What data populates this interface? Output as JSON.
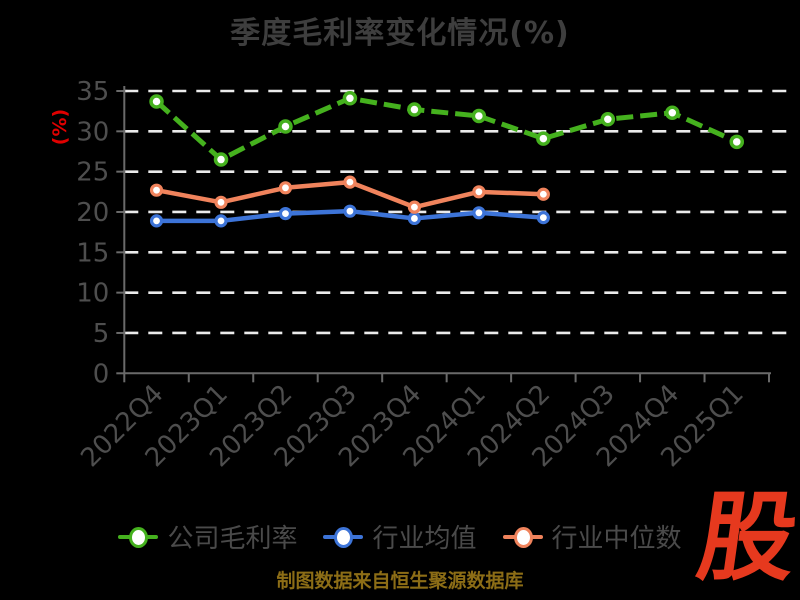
{
  "title": "季度毛利率变化情况(%)",
  "y_axis_unit": "(%)",
  "footer_text": "制图数据来自恒生聚源数据库",
  "logo_text": "股",
  "colors": {
    "background": "#000000",
    "title_text": "#3e3e3e",
    "axis_line": "#6a6a6a",
    "tick_label": "#4e4e4e",
    "gridline": "#ebebeb",
    "y_unit_label": "#e00000",
    "footer_text": "#8c6d16",
    "logo_red": "#e6391e",
    "series_company": "#45b11e",
    "series_industry_avg": "#3d74d8",
    "series_industry_median": "#f0835c"
  },
  "chart_data": {
    "type": "line",
    "title": "季度毛利率变化情况(%)",
    "xlabel": "",
    "ylabel": "(%)",
    "categories": [
      "2022Q4",
      "2023Q1",
      "2023Q2",
      "2023Q3",
      "2023Q4",
      "2024Q1",
      "2024Q2",
      "2024Q3",
      "2024Q4",
      "2025Q1"
    ],
    "series": [
      {
        "name": "公司毛利率",
        "color": "#45b11e",
        "line_style": "dashed",
        "marker": "circle-white-fill",
        "values": [
          33.7,
          26.5,
          30.6,
          34.1,
          32.7,
          31.9,
          29.1,
          31.5,
          32.3,
          28.7
        ]
      },
      {
        "name": "行业均值",
        "color": "#3d74d8",
        "line_style": "solid",
        "marker": "circle-white-fill",
        "values": [
          18.9,
          18.9,
          19.8,
          20.1,
          19.2,
          19.9,
          19.3,
          null,
          null,
          null
        ]
      },
      {
        "name": "行业中位数",
        "color": "#f0835c",
        "line_style": "solid",
        "marker": "circle-white-fill",
        "values": [
          22.7,
          21.2,
          23.0,
          23.7,
          20.6,
          22.5,
          22.2,
          null,
          null,
          null
        ]
      }
    ],
    "ylim": [
      0,
      35
    ],
    "yticks": [
      0,
      5,
      10,
      15,
      20,
      25,
      30,
      35
    ],
    "grid": "horizontal-dashed-white",
    "x_tick_label_rotation": 45,
    "legend_position": "bottom"
  }
}
